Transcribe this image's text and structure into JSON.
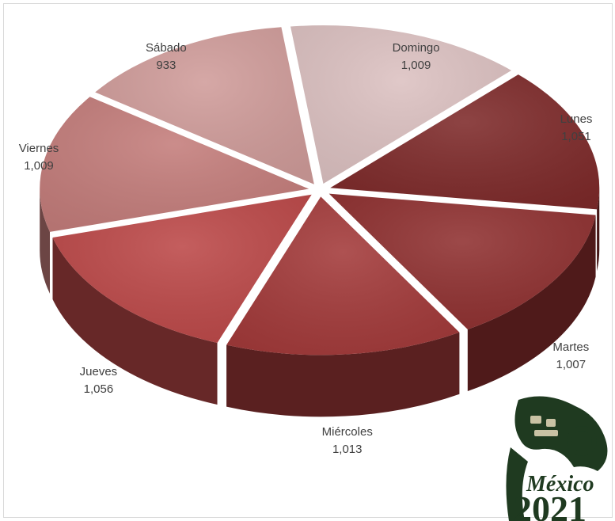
{
  "chart_data": {
    "type": "pie",
    "categories": [
      "Domingo",
      "Lunes",
      "Martes",
      "Miércoles",
      "Jueves",
      "Viernes",
      "Sábado"
    ],
    "values": [
      1009,
      1051,
      1007,
      1013,
      1056,
      1009,
      933
    ],
    "value_labels": [
      "1,009",
      "1,051",
      "1,007",
      "1,013",
      "1,056",
      "1,009",
      "933"
    ],
    "colors": [
      "#dcc1c1",
      "#7e2a2a",
      "#8f3030",
      "#a33a3a",
      "#bc4848",
      "#c47d7b",
      "#d09c9a"
    ],
    "exploded": true,
    "three_d": true,
    "legend": "none"
  },
  "logo": {
    "text_line1": "México",
    "text_line2": "2021",
    "color": "#1f3a20",
    "icon": "serpent-head-icon"
  }
}
